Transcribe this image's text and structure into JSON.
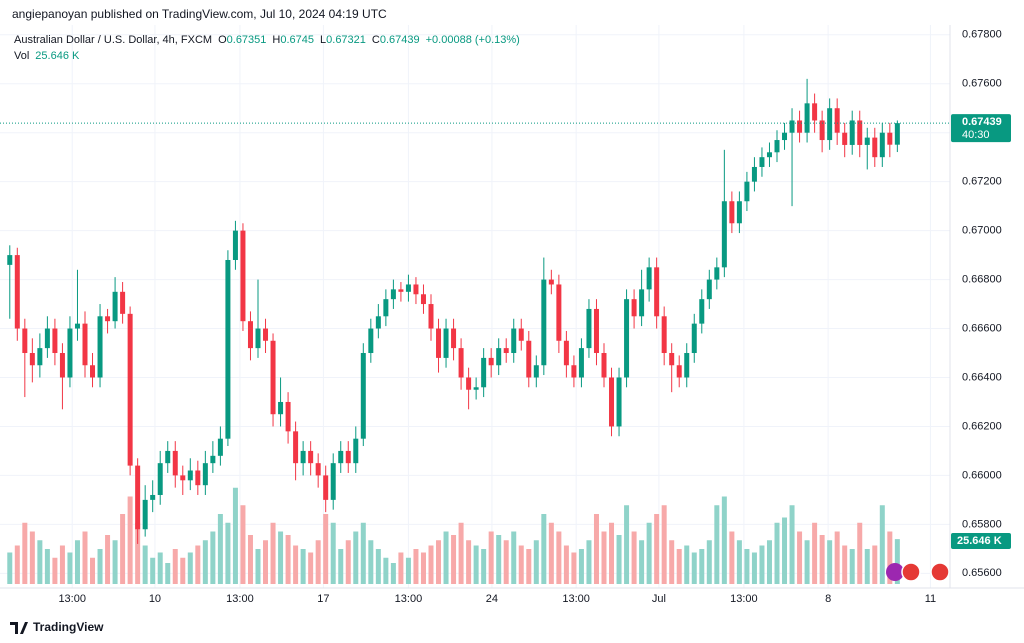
{
  "header": {
    "publisher": "angiepanoyan published on TradingView.com, Jul 10, 2024 04:19 UTC",
    "brand": "TradingView"
  },
  "chart_data": {
    "type": "candlestick",
    "symbol": "Australian Dollar / U.S. Dollar, 4h, FXCM",
    "ohlc_labels": [
      "O",
      "H",
      "L",
      "C"
    ],
    "change_label": "+0.00088 (+0.13%)",
    "volume_name": "Vol",
    "volume_label": "25.646 K",
    "countdown": "40:30",
    "up_color": "#089981",
    "down_color": "#f23645",
    "up_volume_color": "#8fd3c9",
    "down_volume_color": "#f7a9a9",
    "grid": true,
    "ylim": [
      0.6554,
      0.6784
    ],
    "yticks": [
      {
        "value": 0.656,
        "label": "0.65600"
      },
      {
        "value": 0.658,
        "label": "0.65800"
      },
      {
        "value": 0.66,
        "label": "0.66000"
      },
      {
        "value": 0.662,
        "label": "0.66200"
      },
      {
        "value": 0.664,
        "label": "0.66400"
      },
      {
        "value": 0.666,
        "label": "0.66600"
      },
      {
        "value": 0.668,
        "label": "0.66800"
      },
      {
        "value": 0.67,
        "label": "0.67000"
      },
      {
        "value": 0.672,
        "label": "0.67200"
      },
      {
        "value": 0.674,
        "label": "0.67400"
      },
      {
        "value": 0.676,
        "label": "0.67600"
      },
      {
        "value": 0.678,
        "label": "0.67800"
      }
    ],
    "xlim": [
      -1.3,
      125
    ],
    "xticks": [
      {
        "value": 8.3,
        "label": "13:00"
      },
      {
        "value": 19.3,
        "label": "10"
      },
      {
        "value": 30.6,
        "label": "13:00"
      },
      {
        "value": 41.7,
        "label": "17"
      },
      {
        "value": 53.0,
        "label": "13:00"
      },
      {
        "value": 64.1,
        "label": "24"
      },
      {
        "value": 75.3,
        "label": "13:00"
      },
      {
        "value": 86.3,
        "label": "Jul"
      },
      {
        "value": 97.6,
        "label": "13:00"
      },
      {
        "value": 108.8,
        "label": "8"
      },
      {
        "value": 122.4,
        "label": "11"
      }
    ],
    "volume_lim": [
      0,
      60
    ],
    "open": [
      0.6686,
      0.669,
      0.666,
      0.665,
      0.6645,
      0.6652,
      0.666,
      0.665,
      0.664,
      0.666,
      0.6662,
      0.6645,
      0.664,
      0.6665,
      0.6663,
      0.6675,
      0.6666,
      0.6604,
      0.6578,
      0.659,
      0.6592,
      0.6605,
      0.661,
      0.66,
      0.6598,
      0.6602,
      0.6596,
      0.6605,
      0.6608,
      0.6615,
      0.6688,
      0.67,
      0.6663,
      0.6652,
      0.666,
      0.6655,
      0.6625,
      0.663,
      0.6618,
      0.6605,
      0.661,
      0.6605,
      0.66,
      0.659,
      0.6605,
      0.661,
      0.6605,
      0.6615,
      0.665,
      0.666,
      0.6665,
      0.6672,
      0.6676,
      0.6675,
      0.6678,
      0.6674,
      0.667,
      0.666,
      0.6648,
      0.666,
      0.6652,
      0.664,
      0.6635,
      0.6636,
      0.6648,
      0.6645,
      0.6652,
      0.665,
      0.666,
      0.6655,
      0.664,
      0.6645,
      0.668,
      0.6678,
      0.6655,
      0.6645,
      0.664,
      0.6652,
      0.6668,
      0.665,
      0.664,
      0.662,
      0.664,
      0.6672,
      0.6665,
      0.6676,
      0.6685,
      0.6665,
      0.665,
      0.6645,
      0.664,
      0.665,
      0.6662,
      0.6672,
      0.668,
      0.6685,
      0.6712,
      0.6703,
      0.6712,
      0.672,
      0.6726,
      0.673,
      0.6732,
      0.6737,
      0.674,
      0.6745,
      0.674,
      0.6752,
      0.6745,
      0.6737,
      0.675,
      0.674,
      0.6735,
      0.6745,
      0.6735,
      0.6738,
      0.673,
      0.674,
      0.67351
    ],
    "high": [
      0.6694,
      0.6693,
      0.6664,
      0.6656,
      0.6658,
      0.6665,
      0.6664,
      0.6654,
      0.6665,
      0.6684,
      0.6667,
      0.665,
      0.667,
      0.6668,
      0.6681,
      0.6679,
      0.6669,
      0.6607,
      0.6596,
      0.6598,
      0.661,
      0.6614,
      0.6614,
      0.6604,
      0.6607,
      0.6606,
      0.661,
      0.6614,
      0.662,
      0.6692,
      0.6704,
      0.6703,
      0.6667,
      0.668,
      0.6664,
      0.6658,
      0.664,
      0.6634,
      0.6622,
      0.6614,
      0.6614,
      0.6609,
      0.6604,
      0.6609,
      0.6614,
      0.6614,
      0.662,
      0.6654,
      0.6664,
      0.667,
      0.6676,
      0.668,
      0.6679,
      0.6682,
      0.6681,
      0.6678,
      0.6674,
      0.6664,
      0.6664,
      0.6664,
      0.6656,
      0.6644,
      0.664,
      0.6652,
      0.6652,
      0.6656,
      0.6656,
      0.6664,
      0.6664,
      0.6659,
      0.6649,
      0.6689,
      0.6684,
      0.6682,
      0.6659,
      0.6649,
      0.6656,
      0.6672,
      0.6672,
      0.6654,
      0.6644,
      0.6644,
      0.6676,
      0.6676,
      0.6684,
      0.6689,
      0.6689,
      0.6669,
      0.6654,
      0.6649,
      0.6654,
      0.6666,
      0.6676,
      0.6684,
      0.6689,
      0.6733,
      0.6716,
      0.6716,
      0.6724,
      0.673,
      0.6734,
      0.6736,
      0.6741,
      0.6744,
      0.675,
      0.6749,
      0.6762,
      0.6756,
      0.6749,
      0.6754,
      0.6754,
      0.6744,
      0.6749,
      0.6749,
      0.6742,
      0.6742,
      0.6744,
      0.6744,
      0.6745
    ],
    "low": [
      0.6664,
      0.6655,
      0.6632,
      0.6638,
      0.664,
      0.6648,
      0.6645,
      0.6627,
      0.6636,
      0.6655,
      0.664,
      0.6636,
      0.6636,
      0.6658,
      0.666,
      0.6662,
      0.66,
      0.6572,
      0.6575,
      0.6585,
      0.6588,
      0.6601,
      0.6595,
      0.6592,
      0.6594,
      0.6592,
      0.6592,
      0.6601,
      0.6604,
      0.6612,
      0.6684,
      0.6659,
      0.6647,
      0.6648,
      0.665,
      0.662,
      0.662,
      0.6613,
      0.6598,
      0.66,
      0.66,
      0.6595,
      0.6585,
      0.6586,
      0.6601,
      0.6601,
      0.6601,
      0.6612,
      0.6646,
      0.6656,
      0.6661,
      0.6668,
      0.6671,
      0.6671,
      0.667,
      0.6666,
      0.6655,
      0.6642,
      0.6644,
      0.6647,
      0.6635,
      0.6627,
      0.6631,
      0.6632,
      0.664,
      0.6641,
      0.6646,
      0.6646,
      0.6651,
      0.6636,
      0.6636,
      0.6641,
      0.6674,
      0.665,
      0.664,
      0.6636,
      0.6636,
      0.6648,
      0.6645,
      0.6636,
      0.6616,
      0.6616,
      0.6636,
      0.666,
      0.6661,
      0.6671,
      0.666,
      0.6645,
      0.6634,
      0.6636,
      0.6636,
      0.6646,
      0.6658,
      0.6668,
      0.6676,
      0.6681,
      0.6699,
      0.6699,
      0.6708,
      0.6716,
      0.6722,
      0.6726,
      0.6728,
      0.6733,
      0.671,
      0.6736,
      0.6736,
      0.674,
      0.6732,
      0.6733,
      0.6735,
      0.673,
      0.6731,
      0.673,
      0.6725,
      0.6726,
      0.6726,
      0.673,
      0.67321
    ],
    "close": [
      0.669,
      0.666,
      0.665,
      0.6645,
      0.6652,
      0.666,
      0.665,
      0.664,
      0.666,
      0.6662,
      0.6645,
      0.664,
      0.6665,
      0.6663,
      0.6675,
      0.6666,
      0.6604,
      0.6578,
      0.659,
      0.6592,
      0.6605,
      0.661,
      0.66,
      0.6598,
      0.6602,
      0.6596,
      0.6605,
      0.6608,
      0.6615,
      0.6688,
      0.67,
      0.6663,
      0.6652,
      0.666,
      0.6655,
      0.6625,
      0.663,
      0.6618,
      0.6605,
      0.661,
      0.6605,
      0.66,
      0.659,
      0.6605,
      0.661,
      0.6605,
      0.6615,
      0.665,
      0.666,
      0.6665,
      0.6672,
      0.6676,
      0.6675,
      0.6678,
      0.6674,
      0.667,
      0.666,
      0.6648,
      0.666,
      0.6652,
      0.664,
      0.6635,
      0.6636,
      0.6648,
      0.6645,
      0.6652,
      0.665,
      0.666,
      0.6655,
      0.664,
      0.6645,
      0.668,
      0.6678,
      0.6655,
      0.6645,
      0.664,
      0.6652,
      0.6668,
      0.665,
      0.664,
      0.662,
      0.664,
      0.6672,
      0.6665,
      0.6676,
      0.6685,
      0.6665,
      0.665,
      0.6645,
      0.664,
      0.665,
      0.6662,
      0.6672,
      0.668,
      0.6685,
      0.6712,
      0.6703,
      0.6712,
      0.672,
      0.6726,
      0.673,
      0.6732,
      0.6737,
      0.674,
      0.6745,
      0.674,
      0.6752,
      0.6745,
      0.6737,
      0.675,
      0.674,
      0.6735,
      0.6745,
      0.6735,
      0.6738,
      0.673,
      0.674,
      0.67351,
      0.67439
    ],
    "volume": [
      18,
      22,
      35,
      30,
      25,
      20,
      15,
      22,
      18,
      25,
      30,
      15,
      20,
      28,
      25,
      40,
      50,
      35,
      22,
      15,
      18,
      12,
      20,
      15,
      18,
      22,
      25,
      30,
      40,
      35,
      55,
      45,
      28,
      20,
      25,
      35,
      30,
      28,
      22,
      20,
      18,
      25,
      40,
      35,
      20,
      25,
      30,
      35,
      25,
      20,
      15,
      12,
      18,
      15,
      20,
      18,
      22,
      25,
      30,
      28,
      35,
      25,
      22,
      20,
      30,
      28,
      25,
      30,
      22,
      20,
      25,
      40,
      35,
      30,
      22,
      18,
      20,
      25,
      40,
      30,
      35,
      28,
      45,
      30,
      25,
      35,
      40,
      45,
      25,
      20,
      22,
      18,
      20,
      25,
      45,
      50,
      30,
      25,
      20,
      18,
      22,
      25,
      35,
      38,
      45,
      30,
      25,
      35,
      28,
      25,
      30,
      22,
      20,
      35,
      20,
      22,
      45,
      30,
      25.646
    ]
  }
}
